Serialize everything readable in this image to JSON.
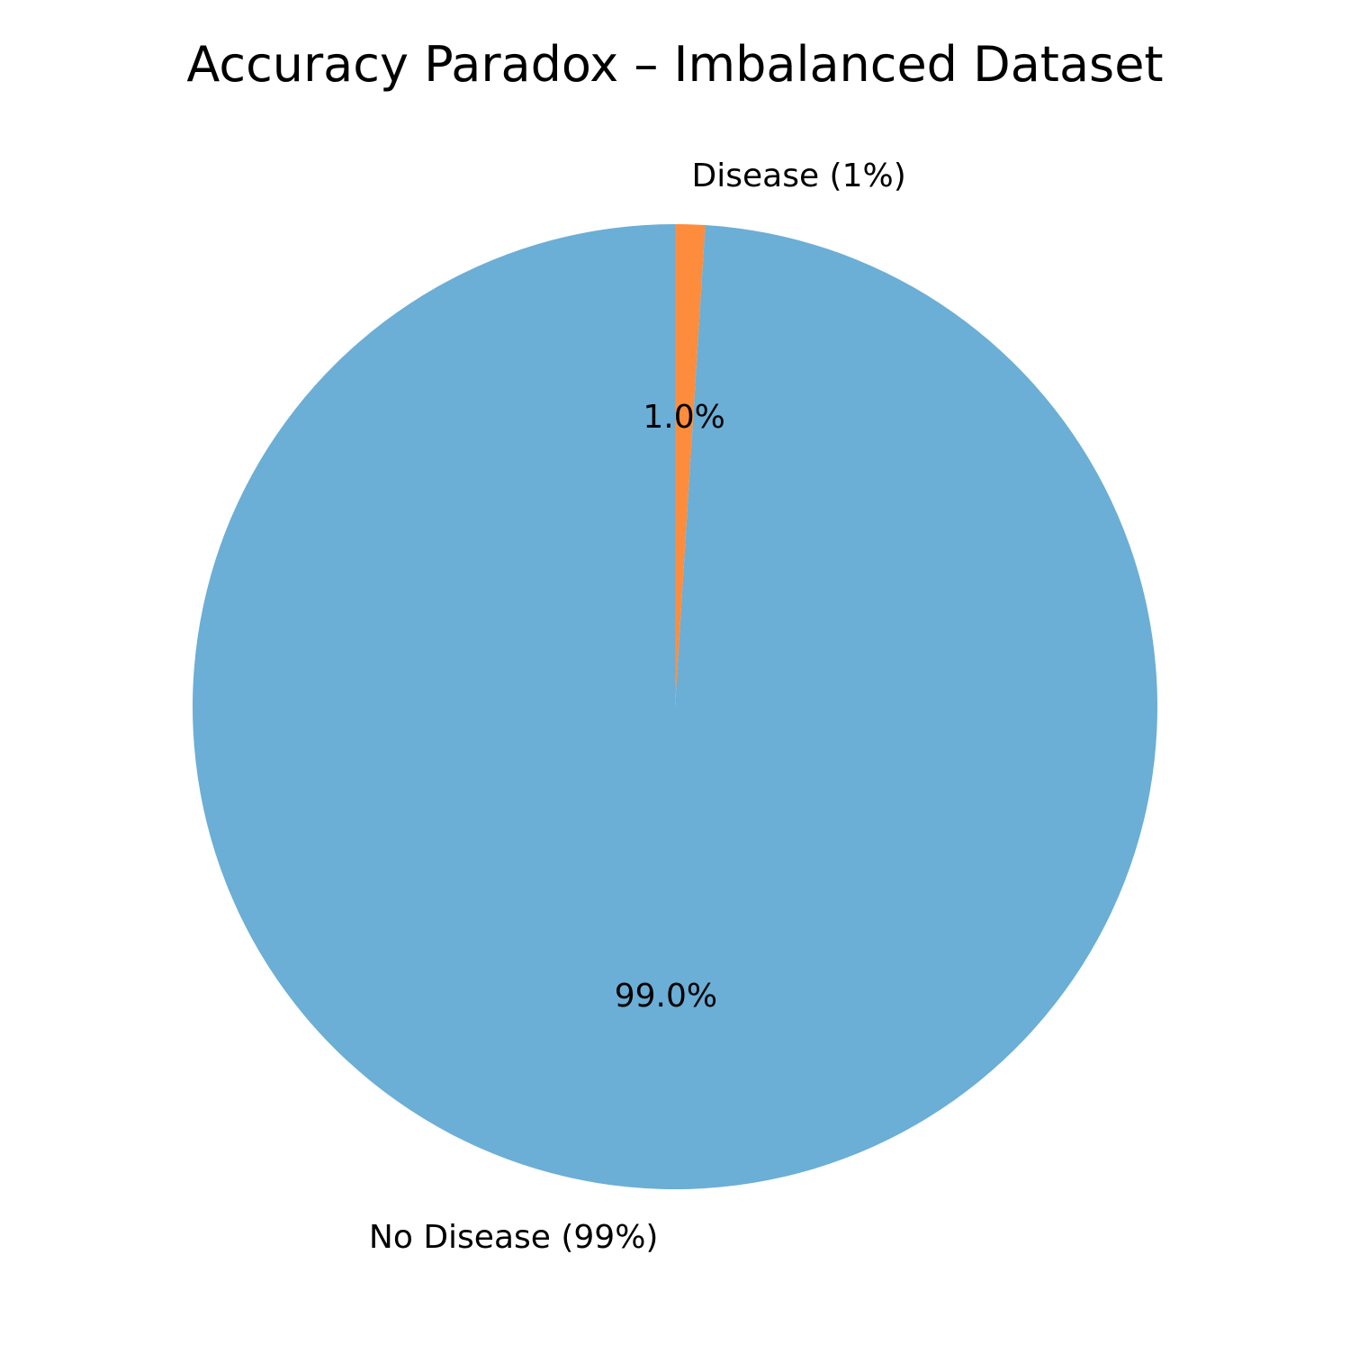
{
  "chart_data": {
    "type": "pie",
    "title": "Accuracy Paradox – Imbalanced Dataset",
    "slices": [
      {
        "label": "Disease (1%)",
        "value": 1,
        "autopct": "1.0%",
        "color": "#fd8d3c"
      },
      {
        "label": "No Disease (99%)",
        "value": 99,
        "autopct": "99.0%",
        "color": "#6baed6"
      }
    ],
    "start_angle_deg": 90,
    "direction": "clockwise"
  }
}
